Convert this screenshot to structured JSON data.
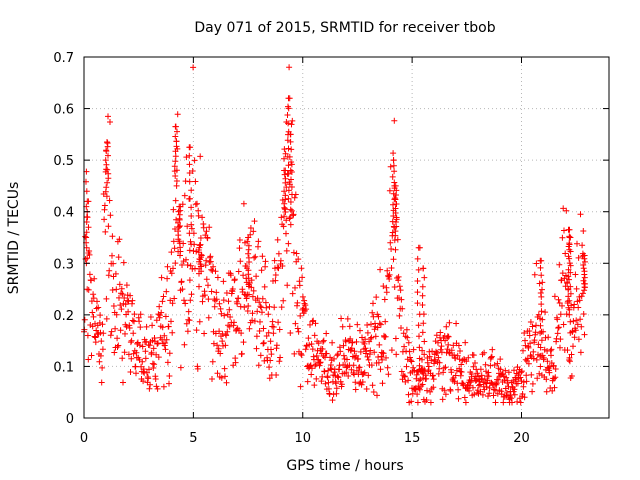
{
  "chart_data": {
    "type": "scatter",
    "title": "Day 071 of 2015, SRMTID for receiver tbob",
    "xlabel": "GPS time / hours",
    "ylabel": "SRMTID / TECUs",
    "xlim": [
      0,
      24
    ],
    "ylim": [
      0,
      0.7
    ],
    "x_ticks": [
      0,
      5,
      10,
      15,
      20
    ],
    "x_tick_labels": [
      "0",
      "5",
      "10",
      "15",
      "20"
    ],
    "y_ticks": [
      0,
      0.1,
      0.2,
      0.3,
      0.4,
      0.5,
      0.6,
      0.7
    ],
    "y_tick_labels": [
      "0",
      "0.1",
      "0.2",
      "0.3",
      "0.4",
      "0.5",
      "0.6",
      "0.7"
    ],
    "grid": true,
    "marker": "+",
    "marker_color": "#ff0000",
    "series": [
      {
        "name": "SRMTID",
        "trend": [
          [
            0.0,
            0.15
          ],
          [
            0.1,
            0.35
          ],
          [
            0.2,
            0.25
          ],
          [
            0.4,
            0.18
          ],
          [
            0.6,
            0.2
          ],
          [
            0.8,
            0.12
          ],
          [
            1.0,
            0.38
          ],
          [
            1.1,
            0.48
          ],
          [
            1.3,
            0.25
          ],
          [
            1.6,
            0.2
          ],
          [
            2.0,
            0.17
          ],
          [
            2.5,
            0.14
          ],
          [
            3.0,
            0.1
          ],
          [
            3.3,
            0.13
          ],
          [
            3.6,
            0.18
          ],
          [
            4.0,
            0.22
          ],
          [
            4.2,
            0.45
          ],
          [
            4.4,
            0.27
          ],
          [
            4.8,
            0.3
          ],
          [
            5.0,
            0.4
          ],
          [
            5.3,
            0.28
          ],
          [
            5.7,
            0.25
          ],
          [
            6.2,
            0.17
          ],
          [
            6.7,
            0.18
          ],
          [
            7.0,
            0.21
          ],
          [
            7.4,
            0.26
          ],
          [
            7.8,
            0.24
          ],
          [
            8.2,
            0.18
          ],
          [
            8.6,
            0.16
          ],
          [
            9.0,
            0.25
          ],
          [
            9.3,
            0.45
          ],
          [
            9.5,
            0.35
          ],
          [
            9.8,
            0.22
          ],
          [
            10.2,
            0.15
          ],
          [
            10.6,
            0.12
          ],
          [
            11.0,
            0.1
          ],
          [
            11.5,
            0.09
          ],
          [
            12.0,
            0.12
          ],
          [
            12.5,
            0.1
          ],
          [
            13.0,
            0.12
          ],
          [
            13.5,
            0.15
          ],
          [
            13.9,
            0.22
          ],
          [
            14.2,
            0.4
          ],
          [
            14.4,
            0.18
          ],
          [
            14.8,
            0.1
          ],
          [
            15.2,
            0.07
          ],
          [
            15.6,
            0.08
          ],
          [
            16.0,
            0.1
          ],
          [
            16.5,
            0.11
          ],
          [
            17.0,
            0.1
          ],
          [
            17.5,
            0.08
          ],
          [
            18.0,
            0.07
          ],
          [
            18.5,
            0.08
          ],
          [
            19.0,
            0.07
          ],
          [
            19.5,
            0.06
          ],
          [
            20.0,
            0.07
          ],
          [
            20.3,
            0.13
          ],
          [
            20.7,
            0.17
          ],
          [
            21.0,
            0.12
          ],
          [
            21.4,
            0.1
          ],
          [
            21.8,
            0.2
          ],
          [
            22.0,
            0.28
          ],
          [
            22.3,
            0.14
          ],
          [
            22.6,
            0.2
          ],
          [
            22.9,
            0.25
          ]
        ],
        "peaks": [
          [
            0.15,
            0.42
          ],
          [
            1.05,
            0.535
          ],
          [
            4.2,
            0.565
          ],
          [
            4.35,
            0.41
          ],
          [
            4.85,
            0.525
          ],
          [
            5.3,
            0.335
          ],
          [
            7.5,
            0.35
          ],
          [
            9.35,
            0.62
          ],
          [
            9.45,
            0.55
          ],
          [
            9.2,
            0.48
          ],
          [
            14.15,
            0.5
          ],
          [
            14.25,
            0.45
          ],
          [
            15.3,
            0.33
          ],
          [
            15.5,
            0.29
          ],
          [
            20.9,
            0.305
          ],
          [
            22.15,
            0.365
          ],
          [
            22.2,
            0.35
          ],
          [
            22.85,
            0.315
          ]
        ]
      }
    ]
  }
}
